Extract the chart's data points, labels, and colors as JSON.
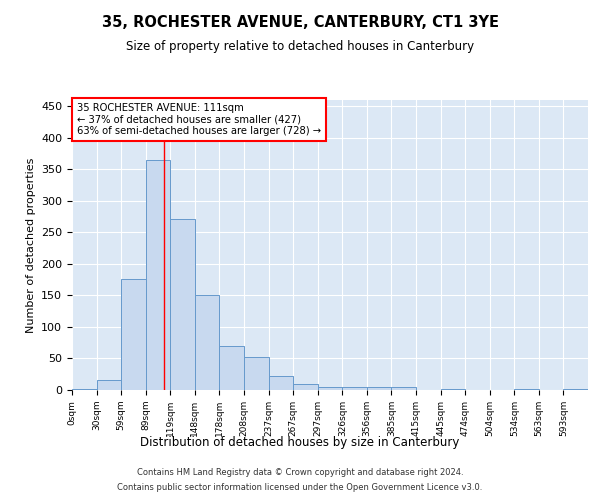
{
  "title": "35, ROCHESTER AVENUE, CANTERBURY, CT1 3YE",
  "subtitle": "Size of property relative to detached houses in Canterbury",
  "xlabel": "Distribution of detached houses by size in Canterbury",
  "ylabel": "Number of detached properties",
  "bar_color": "#c8d9ef",
  "bar_edge_color": "#6699cc",
  "background_color": "#dce8f5",
  "categories": [
    "0sqm",
    "30sqm",
    "59sqm",
    "89sqm",
    "119sqm",
    "148sqm",
    "178sqm",
    "208sqm",
    "237sqm",
    "267sqm",
    "297sqm",
    "326sqm",
    "356sqm",
    "385sqm",
    "415sqm",
    "445sqm",
    "474sqm",
    "504sqm",
    "534sqm",
    "563sqm",
    "593sqm"
  ],
  "values": [
    2,
    16,
    176,
    365,
    272,
    151,
    70,
    53,
    22,
    9,
    5,
    5,
    5,
    5,
    0,
    2,
    0,
    0,
    1,
    0,
    1
  ],
  "ylim": [
    0,
    460
  ],
  "yticks": [
    0,
    50,
    100,
    150,
    200,
    250,
    300,
    350,
    400,
    450
  ],
  "property_line_x": 3.73,
  "annotation_line1": "35 ROCHESTER AVENUE: 111sqm",
  "annotation_line2": "← 37% of detached houses are smaller (427)",
  "annotation_line3": "63% of semi-detached houses are larger (728) →",
  "annotation_box_color": "white",
  "annotation_box_edge_color": "red",
  "footer_line1": "Contains HM Land Registry data © Crown copyright and database right 2024.",
  "footer_line2": "Contains public sector information licensed under the Open Government Licence v3.0.",
  "title_fontsize": 10.5,
  "subtitle_fontsize": 8.5
}
